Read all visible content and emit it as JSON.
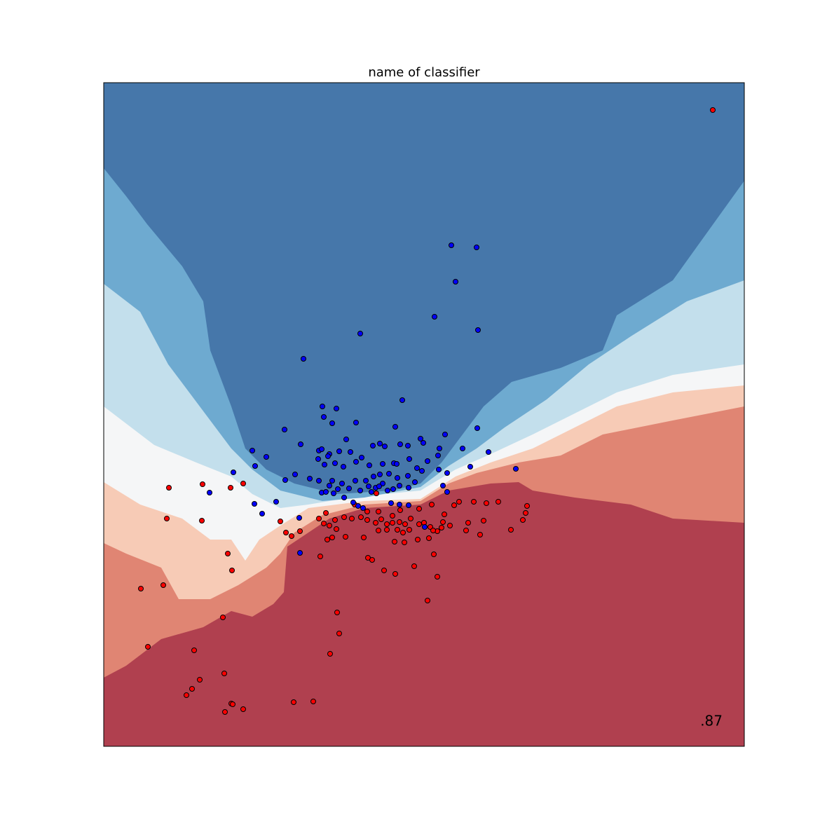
{
  "chart_data": {
    "type": "scatter",
    "title": "name of classifier",
    "annotation": ".87",
    "xlim": [
      0,
      914
    ],
    "ylim": [
      0,
      947
    ],
    "series": [
      {
        "color": "#ff0000",
        "x": [
          869,
          93,
          141,
          181,
          199,
          90,
          140,
          252,
          260,
          268,
          280,
          53,
          85,
          177,
          183,
          170,
          63,
          129,
          172,
          137,
          126,
          118,
          182,
          184,
          173,
          199,
          271,
          299,
          323,
          336,
          333,
          462,
          476,
          471,
          443,
          416,
          400,
          377,
          383,
          309,
          319,
          326,
          345,
          371,
          392,
          415,
          429,
          448,
          464,
          476,
          466,
          482,
          494,
          500,
          507,
          528,
          546,
          563,
          604,
          602,
          598,
          581,
          537,
          517,
          520,
          542,
          486,
          484,
          389,
          358,
          317,
          330,
          343,
          354,
          367,
          376,
          388,
          396,
          404,
          412,
          422,
          430,
          438,
          450,
          457,
          470,
          314,
          322,
          332,
          307,
          376,
          392,
          412,
          423,
          450,
          468,
          436,
          419,
          404,
          427
        ],
        "y": [
          908,
          369,
          374,
          369,
          375,
          325,
          322,
          321,
          305,
          300,
          307,
          225,
          230,
          275,
          251,
          184,
          142,
          137,
          104,
          95,
          82,
          73,
          61,
          60,
          49,
          53,
          63,
          64,
          132,
          161,
          191,
          208,
          242,
          274,
          257,
          246,
          251,
          269,
          266,
          271,
          295,
          298,
          299,
          298,
          308,
          292,
          291,
          295,
          297,
          307,
          313,
          312,
          315,
          344,
          349,
          349,
          347,
          349,
          343,
          333,
          323,
          309,
          302,
          308,
          319,
          322,
          331,
          320,
          361,
          345,
          333,
          323,
          327,
          325,
          327,
          323,
          319,
          324,
          317,
          319,
          320,
          317,
          325,
          317,
          319,
          308,
          318,
          315,
          310,
          325,
          335,
          335,
          329,
          337,
          339,
          345,
          309,
          309,
          309,
          305
        ]
      },
      {
        "color": "#0000ff",
        "x": [
          496,
          532,
          502,
          472,
          534,
          366,
          285,
          426,
          312,
          332,
          314,
          326,
          360,
          258,
          416,
          487,
          533,
          346,
          281,
          307,
          311,
          322,
          320,
          336,
          352,
          384,
          394,
          401,
          423,
          434,
          452,
          456,
          479,
          462,
          477,
          212,
          232,
          216,
          306,
          315,
          330,
          342,
          360,
          368,
          379,
          398,
          414,
          418,
          436,
          447,
          454,
          478,
          512,
          523,
          549,
          588,
          185,
          273,
          294,
          307,
          326,
          322,
          340,
          359,
          374,
          385,
          394,
          407,
          419,
          434,
          398,
          378,
          350,
          334,
          328,
          311,
          317,
          366,
          382,
          388,
          393,
          405,
          413,
          422,
          435,
          444,
          490,
          484,
          490,
          259,
          151,
          215,
          226,
          246,
          279,
          363,
          370,
          410,
          422,
          435,
          343,
          356,
          280,
          458
        ],
        "y": [
          715,
          712,
          663,
          613,
          594,
          589,
          553,
          494,
          485,
          482,
          470,
          461,
          462,
          452,
          456,
          445,
          454,
          438,
          431,
          422,
          424,
          417,
          414,
          421,
          420,
          429,
          432,
          428,
          431,
          429,
          439,
          433,
          425,
          407,
          415,
          422,
          413,
          400,
          410,
          402,
          404,
          399,
          406,
          412,
          401,
          403,
          404,
          403,
          410,
          397,
          393,
          395,
          425,
          399,
          420,
          396,
          391,
          388,
          382,
          379,
          379,
          372,
          375,
          379,
          379,
          385,
          388,
          389,
          383,
          386,
          375,
          371,
          368,
          367,
          361,
          362,
          363,
          365,
          363,
          369,
          371,
          365,
          367,
          372,
          369,
          377,
          390,
          372,
          363,
          380,
          362,
          346,
          332,
          349,
          326,
          343,
          340,
          347,
          345,
          344,
          355,
          348,
          276,
          313
        ]
      }
    ]
  }
}
